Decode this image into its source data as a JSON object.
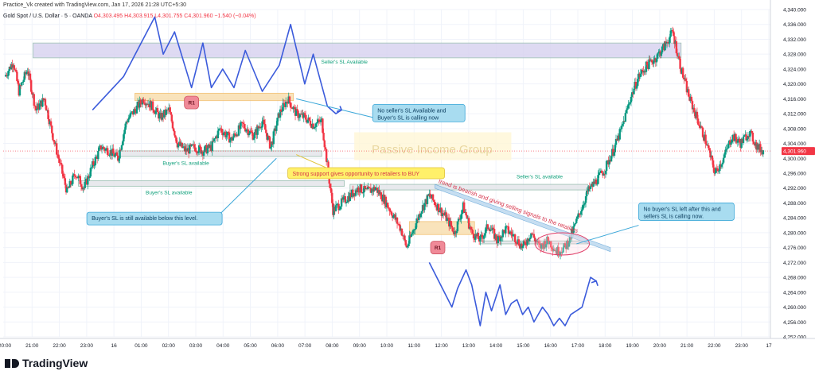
{
  "header": {
    "creator": "Practice_Vk created with TradingView.com, Jan 17, 2026 21:28 UTC+5:30",
    "symbol": "Gold Spot / U.S. Dollar · 5 · OANDA",
    "ohlc": "O4,303.495 H4,303.915 L4,301.755 C4,301.960 −1.540 (−0.04%)"
  },
  "footer": {
    "brand": "TradingView"
  },
  "colors": {
    "up": "#089981",
    "down": "#f23645",
    "wave": "#3b5bdb",
    "zone_purple": "#d9d4f0",
    "zone_orange": "#f9dfb0",
    "zone_gray": "#e4e6ea"
  },
  "chart_data": {
    "type": "candlestick",
    "symbol": "Gold Spot / U.S. Dollar · 5 · OANDA",
    "last_price": "4,301.960",
    "ylim": [
      4252,
      4340
    ],
    "yticks": [
      "4,340.000",
      "4,336.000",
      "4,332.000",
      "4,328.000",
      "4,324.000",
      "4,320.000",
      "4,316.000",
      "4,312.000",
      "4,308.000",
      "4,304.000",
      "4,300.000",
      "4,296.000",
      "4,292.000",
      "4,288.000",
      "4,284.000",
      "4,280.000",
      "4,276.000",
      "4,272.000",
      "4,268.000",
      "4,264.000",
      "4,260.000",
      "4,256.000",
      "4,252.000"
    ],
    "xticks": [
      "20:00",
      "21:00",
      "22:00",
      "23:00",
      "16",
      "01:00",
      "02:00",
      "03:00",
      "04:00",
      "05:00",
      "06:00",
      "07:00",
      "08:00",
      "09:00",
      "10:00",
      "11:00",
      "12:00",
      "13:00",
      "14:00",
      "15:00",
      "16:00",
      "17:00",
      "18:00",
      "19:00",
      "20:00",
      "21:00",
      "22:00",
      "23:00",
      "17"
    ],
    "x_range": [
      0,
      27
    ],
    "price_path": [
      [
        0.0,
        4322
      ],
      [
        0.3,
        4326
      ],
      [
        0.5,
        4318
      ],
      [
        0.8,
        4324
      ],
      [
        1.1,
        4313
      ],
      [
        1.4,
        4316
      ],
      [
        1.7,
        4306
      ],
      [
        2.0,
        4297
      ],
      [
        2.2,
        4291
      ],
      [
        2.5,
        4296
      ],
      [
        2.8,
        4292
      ],
      [
        3.1,
        4298
      ],
      [
        3.4,
        4303
      ],
      [
        3.7,
        4302
      ],
      [
        4.0,
        4300
      ],
      [
        4.3,
        4310
      ],
      [
        4.6,
        4313
      ],
      [
        4.9,
        4316
      ],
      [
        5.2,
        4314
      ],
      [
        5.5,
        4311
      ],
      [
        5.8,
        4313
      ],
      [
        6.1,
        4304
      ],
      [
        6.4,
        4302
      ],
      [
        6.7,
        4303
      ],
      [
        7.0,
        4302
      ],
      [
        7.3,
        4303
      ],
      [
        7.6,
        4308
      ],
      [
        8.0,
        4305
      ],
      [
        8.4,
        4309
      ],
      [
        8.8,
        4306
      ],
      [
        9.1,
        4310
      ],
      [
        9.4,
        4303
      ],
      [
        9.7,
        4312
      ],
      [
        10.0,
        4316
      ],
      [
        10.3,
        4312
      ],
      [
        10.6,
        4311
      ],
      [
        10.9,
        4309
      ],
      [
        11.2,
        4310
      ],
      [
        11.4,
        4298
      ],
      [
        11.6,
        4286
      ],
      [
        11.9,
        4288
      ],
      [
        12.2,
        4290
      ],
      [
        12.5,
        4292
      ],
      [
        12.8,
        4291
      ],
      [
        13.1,
        4292
      ],
      [
        13.4,
        4289
      ],
      [
        13.7,
        4285
      ],
      [
        14.0,
        4281
      ],
      [
        14.2,
        4276
      ],
      [
        14.4,
        4280
      ],
      [
        14.7,
        4286
      ],
      [
        15.0,
        4290
      ],
      [
        15.3,
        4287
      ],
      [
        15.6,
        4284
      ],
      [
        15.9,
        4280
      ],
      [
        16.2,
        4287
      ],
      [
        16.5,
        4280
      ],
      [
        16.8,
        4278
      ],
      [
        17.1,
        4282
      ],
      [
        17.4,
        4278
      ],
      [
        17.7,
        4281
      ],
      [
        18.0,
        4279
      ],
      [
        18.3,
        4276
      ],
      [
        18.6,
        4280
      ],
      [
        18.9,
        4276
      ],
      [
        19.2,
        4278
      ],
      [
        19.5,
        4275
      ],
      [
        19.8,
        4276
      ],
      [
        20.0,
        4279
      ],
      [
        20.3,
        4285
      ],
      [
        20.6,
        4291
      ],
      [
        20.9,
        4294
      ],
      [
        21.2,
        4297
      ],
      [
        21.5,
        4302
      ],
      [
        21.8,
        4308
      ],
      [
        22.1,
        4316
      ],
      [
        22.4,
        4322
      ],
      [
        22.7,
        4325
      ],
      [
        23.0,
        4327
      ],
      [
        23.3,
        4330
      ],
      [
        23.6,
        4334
      ],
      [
        23.9,
        4324
      ],
      [
        24.2,
        4316
      ],
      [
        24.5,
        4310
      ],
      [
        24.8,
        4304
      ],
      [
        25.1,
        4296
      ],
      [
        25.4,
        4300
      ],
      [
        25.7,
        4306
      ],
      [
        26.0,
        4304
      ],
      [
        26.3,
        4307
      ],
      [
        26.6,
        4303
      ],
      [
        26.8,
        4302
      ]
    ],
    "zones": [
      {
        "name": "seller-sl-zone",
        "color": "purple",
        "x": [
          1.0,
          23.9
        ],
        "y": [
          4327,
          4331
        ],
        "label": "Seller's SL Available"
      },
      {
        "name": "buyer-sl-zone-upper",
        "color": "gray",
        "x": [
          4.0,
          11.2
        ],
        "y": [
          4300.5,
          4302
        ],
        "label": "Buyer's SL available"
      },
      {
        "name": "buyer-sl-zone-lower",
        "color": "gray",
        "x": [
          2.6,
          12.0
        ],
        "y": [
          4292.5,
          4294
        ],
        "label": "Buyer's SL available"
      },
      {
        "name": "r1-zone-left",
        "color": "orange",
        "x": [
          4.6,
          10.2
        ],
        "y": [
          4315.5,
          4317.5
        ],
        "label": ""
      },
      {
        "name": "r1-zone-right",
        "color": "orange",
        "x": [
          14.3,
          16.6
        ],
        "y": [
          4279.5,
          4283
        ],
        "label": ""
      },
      {
        "name": "seller-sl-zone-right",
        "color": "gray",
        "x": [
          12.2,
          20.6
        ],
        "y": [
          4291.5,
          4293
        ],
        "label": "Seller's SL available"
      },
      {
        "name": "support-line-right",
        "color": "gray",
        "x": [
          16.8,
          20.6
        ],
        "y": [
          4277,
          4277.8
        ],
        "label": ""
      }
    ],
    "annotations": [
      {
        "name": "callout-no-seller-sl",
        "text": "No seller's SL Available and\nBuyer's SL is calling now"
      },
      {
        "name": "callout-strong-support",
        "text": "Strong support gives opportunity to retailers to BUY"
      },
      {
        "name": "callout-buyer-sl-below",
        "text": "Buyer's SL is still available below this level."
      },
      {
        "name": "callout-no-buyer-sl",
        "text": "No buyer's SL left after this and\nsellers SL is calling now."
      },
      {
        "name": "trend-text",
        "text": "trend is bearish and giving selling signals to the retailers"
      },
      {
        "name": "r1-label-left",
        "text": "R1"
      },
      {
        "name": "r1-label-right",
        "text": "R1"
      },
      {
        "name": "watermark",
        "text": "Passive Income Group"
      }
    ]
  }
}
